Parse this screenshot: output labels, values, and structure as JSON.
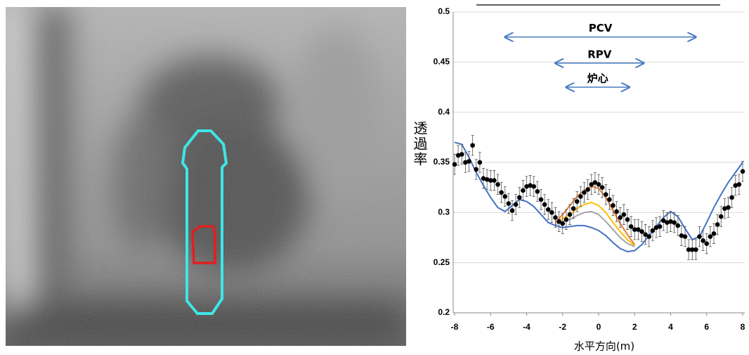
{
  "chart_data": {
    "type": "scatter",
    "xlabel": "水平方向(m)",
    "ylabel": "透過率",
    "xlim": [
      -8,
      8
    ],
    "xticks": [
      -8,
      -6,
      -4,
      -2,
      0,
      2,
      4,
      6,
      8
    ],
    "ylim": [
      0.2,
      0.5
    ],
    "yticks": [
      0.2,
      0.25,
      0.3,
      0.35,
      0.4,
      0.45,
      0.5
    ],
    "grid": true,
    "annotations": [
      {
        "text": "PCV",
        "x": [
          -5.2,
          5.4
        ],
        "y": 0.475
      },
      {
        "text": "RPV",
        "x": [
          -2.4,
          2.5
        ],
        "y": 0.449
      },
      {
        "text": "炉心",
        "x": [
          -1.8,
          1.7
        ],
        "y": 0.425
      }
    ],
    "series": [
      {
        "type": "line",
        "color": "#4472c4",
        "x": [
          -8,
          -7.6,
          -7.2,
          -6.8,
          -6.4,
          -6.0,
          -5.6,
          -5.2,
          -4.8,
          -4.4,
          -4.0,
          -3.6,
          -3.2,
          -2.8,
          -2.4,
          -2.0,
          -1.6,
          -1.2,
          -0.8,
          -0.4,
          0,
          0.4,
          0.8,
          1.2,
          1.6,
          2.0,
          2.4,
          2.8,
          3.2,
          3.6,
          4.0,
          4.4,
          4.8,
          5.2,
          5.6,
          6.0,
          6.4,
          6.8,
          7.2,
          7.6,
          8.0
        ],
        "values": [
          0.37,
          0.368,
          0.355,
          0.34,
          0.327,
          0.315,
          0.305,
          0.301,
          0.307,
          0.313,
          0.311,
          0.306,
          0.298,
          0.29,
          0.287,
          0.285,
          0.286,
          0.287,
          0.287,
          0.285,
          0.282,
          0.277,
          0.27,
          0.264,
          0.261,
          0.262,
          0.268,
          0.277,
          0.286,
          0.295,
          0.301,
          0.296,
          0.284,
          0.273,
          0.276,
          0.29,
          0.305,
          0.318,
          0.33,
          0.34,
          0.35
        ]
      },
      {
        "type": "line",
        "color": "#a5a5a5",
        "x": [
          -2.4,
          -2.0,
          -1.6,
          -1.2,
          -0.8,
          -0.4,
          0,
          0.4,
          0.8,
          1.2,
          1.6,
          2.0
        ],
        "values": [
          0.288,
          0.291,
          0.293,
          0.297,
          0.3,
          0.301,
          0.298,
          0.291,
          0.283,
          0.275,
          0.269,
          0.266
        ]
      },
      {
        "type": "line",
        "color": "#ffc000",
        "x": [
          -2.4,
          -2.0,
          -1.6,
          -1.2,
          -0.8,
          -0.4,
          0,
          0.4,
          0.8,
          1.2,
          1.6,
          2.0
        ],
        "values": [
          0.29,
          0.294,
          0.298,
          0.304,
          0.308,
          0.31,
          0.307,
          0.3,
          0.29,
          0.281,
          0.273,
          0.267
        ]
      },
      {
        "type": "line",
        "color": "#ed7d31",
        "x": [
          -2.4,
          -2.0,
          -1.6,
          -1.2,
          -0.8,
          -0.4,
          0,
          0.4,
          0.8,
          1.2,
          1.6,
          2.0
        ],
        "values": [
          0.29,
          0.298,
          0.307,
          0.316,
          0.322,
          0.326,
          0.324,
          0.315,
          0.302,
          0.289,
          0.278,
          0.268
        ]
      },
      {
        "type": "scatter",
        "color": "#000000",
        "error": 0.01,
        "x": [
          -8,
          -7.8,
          -7.6,
          -7.4,
          -7.2,
          -7.0,
          -6.8,
          -6.6,
          -6.4,
          -6.2,
          -6.0,
          -5.8,
          -5.6,
          -5.4,
          -5.2,
          -5.0,
          -4.8,
          -4.6,
          -4.4,
          -4.2,
          -4.0,
          -3.8,
          -3.6,
          -3.4,
          -3.2,
          -3.0,
          -2.8,
          -2.6,
          -2.4,
          -2.2,
          -2.0,
          -1.8,
          -1.6,
          -1.4,
          -1.2,
          -1.0,
          -0.8,
          -0.6,
          -0.4,
          -0.2,
          0,
          0.2,
          0.4,
          0.6,
          0.8,
          1.0,
          1.2,
          1.4,
          1.6,
          1.8,
          2.0,
          2.2,
          2.4,
          2.6,
          2.8,
          3.0,
          3.2,
          3.4,
          3.6,
          3.8,
          4.0,
          4.2,
          4.4,
          4.6,
          4.8,
          5.0,
          5.2,
          5.4,
          5.6,
          5.8,
          6.0,
          6.2,
          6.4,
          6.6,
          6.8,
          7.0,
          7.2,
          7.4,
          7.6,
          7.8,
          8.0
        ],
        "values": [
          0.348,
          0.357,
          0.358,
          0.35,
          0.351,
          0.367,
          0.343,
          0.35,
          0.334,
          0.333,
          0.332,
          0.332,
          0.328,
          0.32,
          0.316,
          0.309,
          0.302,
          0.308,
          0.315,
          0.322,
          0.326,
          0.327,
          0.326,
          0.321,
          0.313,
          0.308,
          0.303,
          0.3,
          0.295,
          0.291,
          0.289,
          0.293,
          0.298,
          0.304,
          0.311,
          0.316,
          0.32,
          0.323,
          0.328,
          0.33,
          0.328,
          0.325,
          0.318,
          0.313,
          0.307,
          0.301,
          0.295,
          0.298,
          0.293,
          0.286,
          0.283,
          0.283,
          0.281,
          0.278,
          0.276,
          0.282,
          0.285,
          0.286,
          0.292,
          0.29,
          0.291,
          0.29,
          0.287,
          0.277,
          0.276,
          0.263,
          0.263,
          0.263,
          0.276,
          0.272,
          0.269,
          0.276,
          0.279,
          0.288,
          0.296,
          0.304,
          0.305,
          0.315,
          0.327,
          0.328,
          0.341
        ]
      }
    ]
  }
}
